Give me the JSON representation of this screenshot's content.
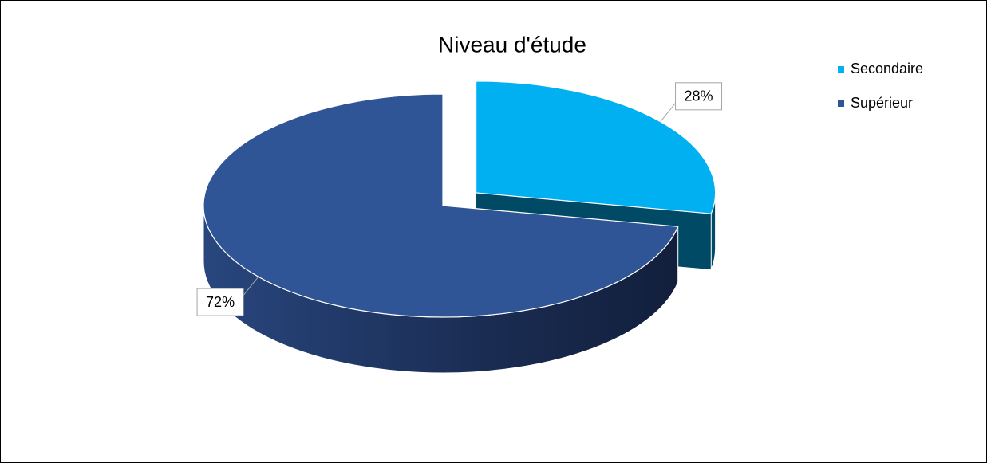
{
  "chart_data": {
    "type": "pie",
    "title": "Niveau d'étude",
    "categories": [
      "Secondaire",
      "Supérieur"
    ],
    "values": [
      28,
      72
    ],
    "value_labels": [
      "28%",
      "72%"
    ],
    "colors": [
      "#00b0f0",
      "#2f5597"
    ],
    "legend": "right"
  }
}
